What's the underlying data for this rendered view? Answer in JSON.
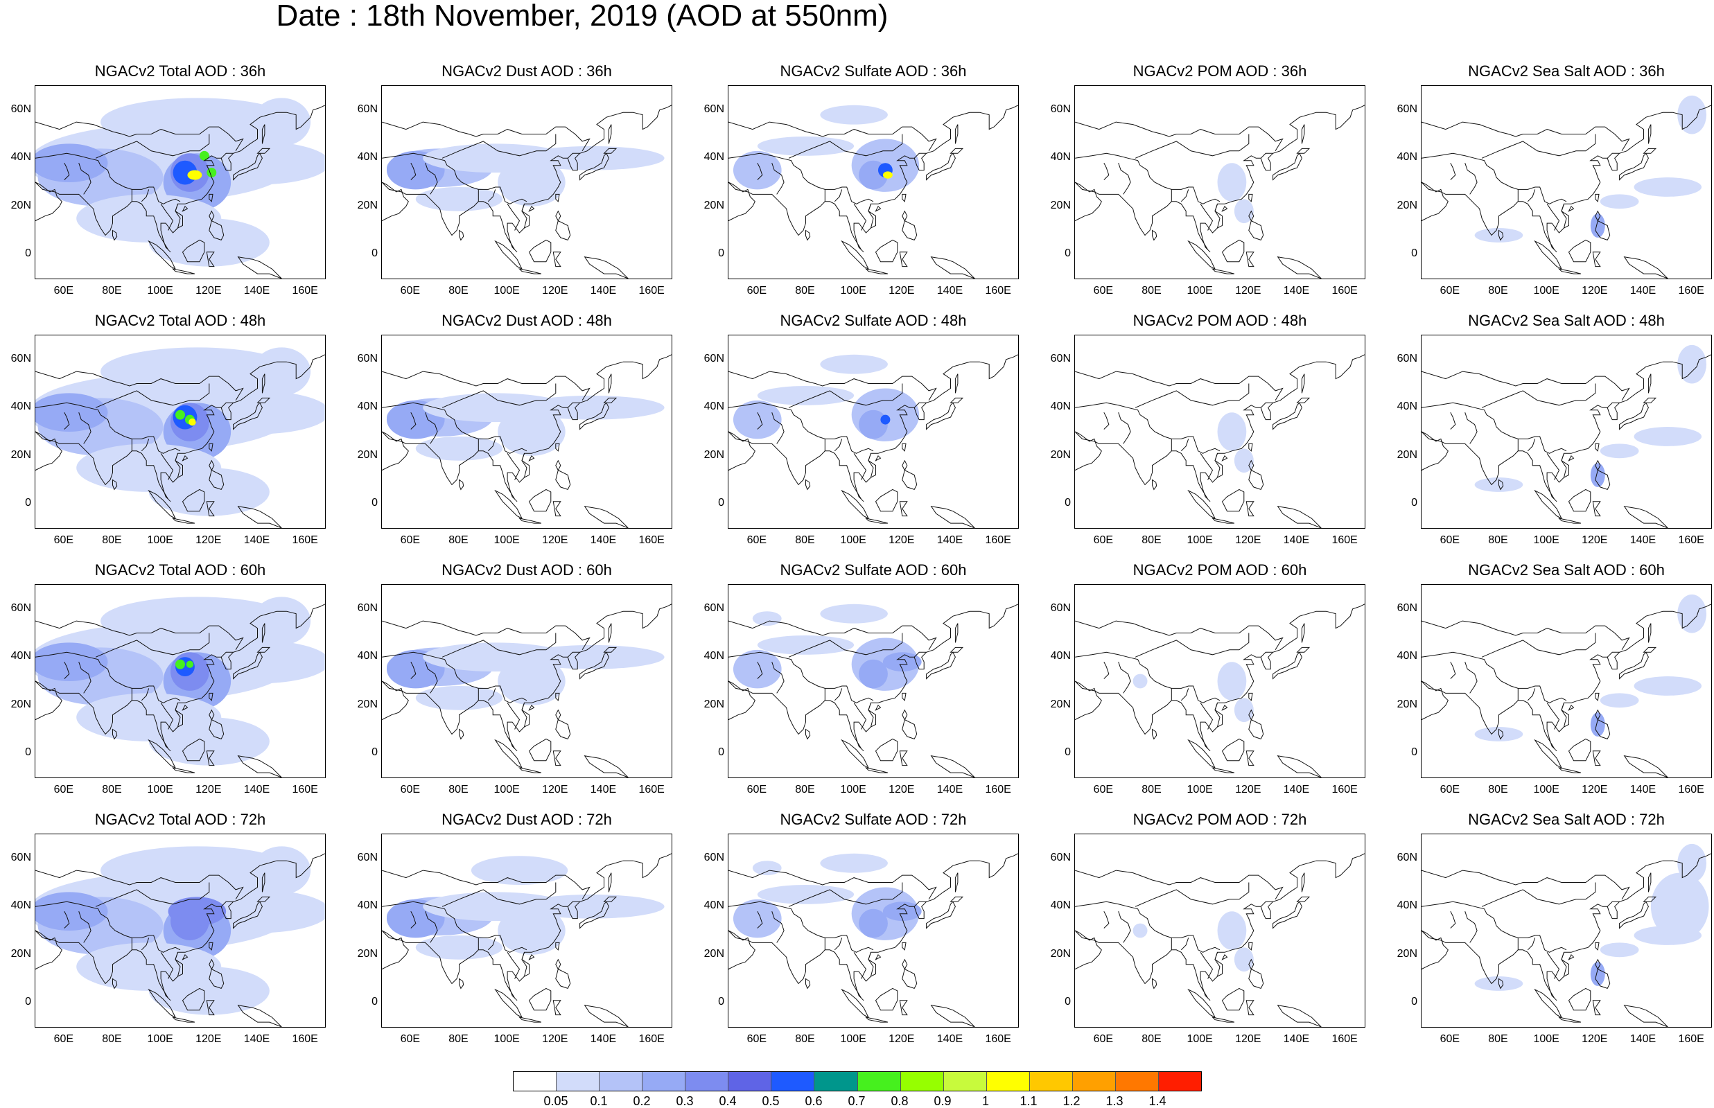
{
  "figure": {
    "title": "Date : 18th November, 2019 (AOD at 550nm)"
  },
  "map_axes": {
    "lat_ticks": [
      "60N",
      "40N",
      "20N",
      "0"
    ],
    "lon_ticks": [
      "60E",
      "80E",
      "100E",
      "120E",
      "140E",
      "160E"
    ],
    "lat_range": [
      -10,
      70
    ],
    "lon_range": [
      48,
      168
    ]
  },
  "panels": [
    {
      "title": "NGACv2 Total AOD : 36h",
      "species": "total",
      "lead": "36h"
    },
    {
      "title": "NGACv2 Dust AOD : 36h",
      "species": "dust",
      "lead": "36h"
    },
    {
      "title": "NGACv2 Sulfate AOD : 36h",
      "species": "sulfate",
      "lead": "36h"
    },
    {
      "title": "NGACv2 POM AOD : 36h",
      "species": "pom",
      "lead": "36h"
    },
    {
      "title": "NGACv2 Sea Salt AOD : 36h",
      "species": "seasalt",
      "lead": "36h"
    },
    {
      "title": "NGACv2 Total AOD : 48h",
      "species": "total",
      "lead": "48h"
    },
    {
      "title": "NGACv2 Dust AOD : 48h",
      "species": "dust",
      "lead": "48h"
    },
    {
      "title": "NGACv2 Sulfate AOD : 48h",
      "species": "sulfate",
      "lead": "48h"
    },
    {
      "title": "NGACv2 POM AOD : 48h",
      "species": "pom",
      "lead": "48h"
    },
    {
      "title": "NGACv2 Sea Salt AOD : 48h",
      "species": "seasalt",
      "lead": "48h"
    },
    {
      "title": "NGACv2 Total AOD : 60h",
      "species": "total",
      "lead": "60h"
    },
    {
      "title": "NGACv2 Dust AOD : 60h",
      "species": "dust",
      "lead": "60h"
    },
    {
      "title": "NGACv2 Sulfate AOD : 60h",
      "species": "sulfate",
      "lead": "60h"
    },
    {
      "title": "NGACv2 POM AOD : 60h",
      "species": "pom",
      "lead": "60h"
    },
    {
      "title": "NGACv2 Sea Salt AOD : 60h",
      "species": "seasalt",
      "lead": "60h"
    },
    {
      "title": "NGACv2 Total AOD : 72h",
      "species": "total",
      "lead": "72h"
    },
    {
      "title": "NGACv2 Dust AOD : 72h",
      "species": "dust",
      "lead": "72h"
    },
    {
      "title": "NGACv2 Sulfate AOD : 72h",
      "species": "sulfate",
      "lead": "72h"
    },
    {
      "title": "NGACv2 POM AOD : 72h",
      "species": "pom",
      "lead": "72h"
    },
    {
      "title": "NGACv2 Sea Salt  AOD : 72h",
      "species": "seasalt",
      "lead": "72h"
    }
  ],
  "colorbar": {
    "labels": [
      "0.05",
      "0.1",
      "0.2",
      "0.3",
      "0.4",
      "0.5",
      "0.6",
      "0.7",
      "0.8",
      "0.9",
      "1",
      "1.1",
      "1.2",
      "1.3",
      "1.4"
    ],
    "colors": [
      "#ffffff",
      "#d2dcfa",
      "#b4c3f8",
      "#96aaf5",
      "#7d8cf0",
      "#5f64e6",
      "#1e5aff",
      "#00968c",
      "#46f01e",
      "#96ff00",
      "#c8fa3c",
      "#ffff00",
      "#ffc800",
      "#ffa000",
      "#ff7800",
      "#ff1e00"
    ]
  },
  "shading": {
    "light": "#d2dcfa",
    "mid": "#b4c3f8",
    "mid2": "#96aaf5",
    "dark": "#7d8cf0",
    "blue": "#1e5aff",
    "green": "#46f01e",
    "yellow": "#ffff00"
  }
}
